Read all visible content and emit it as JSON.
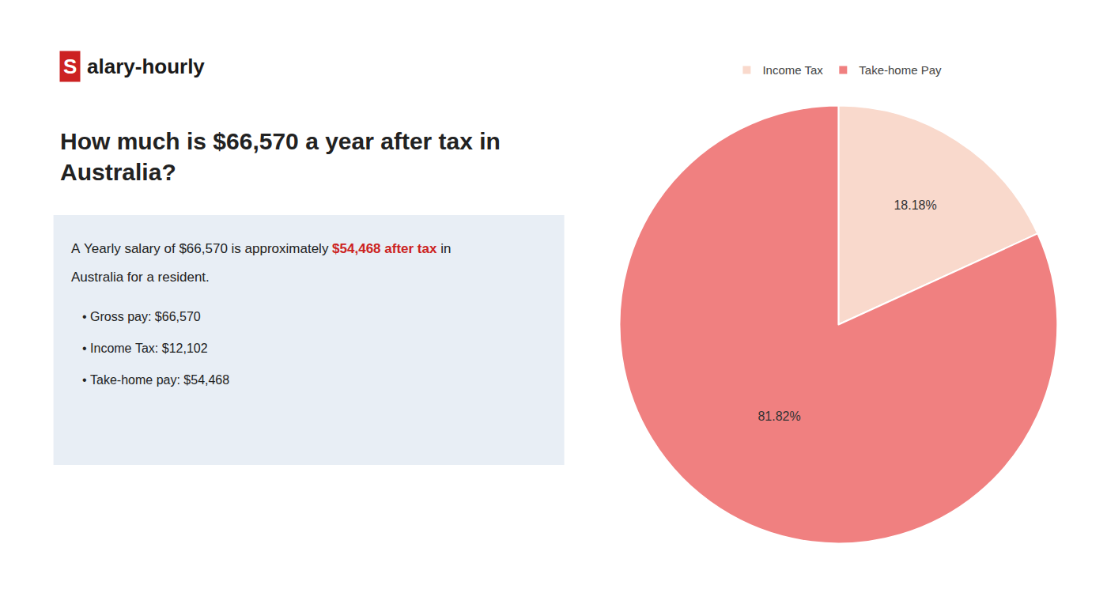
{
  "chart_data": {
    "type": "pie",
    "title": "How much is $66,570 a year after tax in\nAustralia?",
    "annotations": [
      [
        {
          "text": "S",
          "color": "#cc2222"
        },
        {
          "text": "alary-hourly"
        }
      ],
      [
        {
          "text": "A Yearly salary of $66,570 is approximately "
        },
        {
          "text": "$54,468 after tax",
          "color": "#cc2222"
        },
        {
          "text": " in"
        }
      ],
      [
        {
          "text": "Australia for a resident."
        }
      ],
      [
        {
          "text": "• Gross pay: $66,570"
        }
      ],
      [
        {
          "text": "• Income Tax: $12,102"
        }
      ],
      [
        {
          "text": "• Take-home pay: $54,468"
        }
      ]
    ],
    "categories": [
      "Income Tax",
      "Take-home Pay"
    ],
    "values": [
      18.18,
      81.82
    ],
    "value_labels": [
      "18.18%",
      "81.82%"
    ],
    "data_labels": true,
    "colors": [
      "#f9d9cc",
      "#f08080"
    ],
    "legend": "top"
  }
}
